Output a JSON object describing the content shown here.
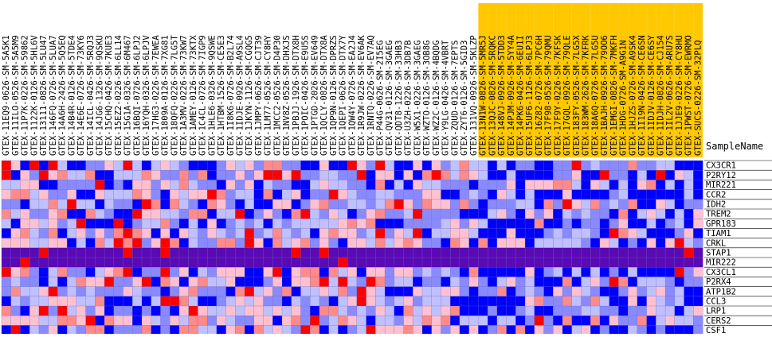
{
  "chart_data": {
    "type": "heatmap",
    "title": "",
    "xlabel": "",
    "ylabel": "",
    "row_header_label": "SampleName",
    "colors": {
      "very_low": "#0000ff",
      "low": "#8a8aff",
      "mid_low": "#c0c0ff",
      "mid_high": "#ffc0d0",
      "high": "#ff8a8a",
      "very_high": "#ff0000",
      "row_band": "#5a0ab4",
      "highlight_label": "#ffc800"
    },
    "columns": [
      "GTEX-11EQ9-0626-SM-5A5K1",
      "GTEX-11ILO-0526-SM-5A5M9",
      "GTEX-11P7K-0226-SM-59862",
      "GTEX-1122K-0126-SM-5HL6V",
      "GTEX-13111-0826-SM-5LU47",
      "GTEX-146FQ-0726-SM-5LUA7",
      "GTEX-14A6H-2426-SM-5Q5EQ",
      "GTEX-14B4R-0126-SM-5TDE4",
      "GTEX-14E6E-0726-SM-73KY6",
      "GTEX-14ICL-0426-SM-5RQJ3",
      "GTEX-14JG6-1326-SM-9QSKU",
      "GTEX-15CHQ-0426-SM-7KUE3",
      "GTEX-15EZ2-0226-SM-6LL14",
      "GTEX-15G1A-0326-SM-6M467",
      "GTEX-16BQI-0726-SM-6LPJ2",
      "GTEX-16YQH-0326-SM-6LPJV",
      "GTEX-17HG3-0226-SM-7EWEA",
      "GTEX-1809A-0126-SM-7XG81",
      "GTEX-18QFQ-0226-SM-7LG5T",
      "GTEX-1A3MV-0226-SM-73KW7",
      "GTEX-1AMEY-0126-SM-73KTX",
      "GTEX-1C4CL-0726-SM-7IGP9",
      "GTEX-1HLE6-0326-SM-9QSWE",
      "GTEX-1HTBM-1526-SM-CE5E3",
      "GTEX-1I8K6-0726-SM-B2L74",
      "GTEX-1IDJE-0926-SM-A9SL4",
      "GTEX-1JKYN-1126-SM-CGQG5",
      "GTEX-1JMPY-0626-SM-CJT39",
      "GTEX-1LM77-0526-SM-CY8HY",
      "GTEX-1MCC2-0526-SM-D4P30",
      "GTEX-1NV8Z-0526-SM-DHXJS",
      "GTEX-1PBJJ-1926-SM-DTX8H",
      "GTEX-1POIC-0426-SM-E9U5S",
      "GTEX-1PTGD-2026-SM-EV649",
      "GTEX-1QCLY-0826-SM-DTX8A",
      "GTEX-1QP9N-0126-SM-DPRZS",
      "GTEX-1QEPI-0626-SM-DTX7Y",
      "GTEX-1QW4Y-0726-SM-EA2J4",
      "GTEX-1R9JW-0226-SM-EV6AK",
      "GTEX-1RNTQ-0226-SM-EV7AQ",
      "GTEX-P44G-0626-SM-2I5EG",
      "GTEX-QV31-0126-SM-3GAEG",
      "GTEX-QDT8-1226-SM-33HB3",
      "GTEX-U3ZH-0226-SM-3DB7B",
      "GTEX-W5X1-0226-SM-3GAEG",
      "GTEX-WZTO-0126-SM-3OB8G",
      "GTEX-WZ2C-0126-SM-4BQDG",
      "GTEX-Y9LG-0426-SM-4VBRT",
      "GTEX-ZQUD-0126-SM-7EPTS",
      "GTEX-ZYT6-0126-SM-5GID3",
      "GTEX-131VQ-0926-SM-5KLZP",
      "GTEX-13N1W-0826-SM-5MR5J",
      "GTEX-13QJC-0826-SM-5RQKC",
      "GTEX-148VJ-0926-SM-5TDD3",
      "GTEX-14PJM-0926-SM-5YY4A",
      "GTEX-14PK6-0426-SM-6EU1I",
      "GTEX-15UF6-1126-SM-6LPJ3",
      "GTEX-16Z82-0726-SM-7PC6H",
      "GTEX-17F98-0526-SM-79QMU",
      "GTEX-17F9Y-0226-SM-7KFSK",
      "GTEX-17GQL-0926-SM-79QLE",
      "GTEX-183FY-0526-SM-7LG5X",
      "GTEX-183WM-2626-SM-7KFRK",
      "GTEX-18A6Q-0726-SM-7LG5U",
      "GTEX-1BAJH-0926-SM-79OO6",
      "GTEX-1EMGI-0826-SM-7MKFH",
      "GTEX-1HDG-0726-SM-A9G1N",
      "GTEX-1HJZS-0726-SM-A9SK4",
      "GTEX-1I19N-0426-SM-CE6SN",
      "GTEX-1IDJV-0126-SM-CE6SY",
      "GTEX-1IDJH-0826-SM-CJ154",
      "GTEX-1IL2V-0626-SM-ARU7S",
      "GTEX-1JJE9-0226-SM-CY8HU",
      "GTEX-1PWST-0726-SM-EWRMO",
      "GTEX-SUCS-0226-SM-32PLQ"
    ],
    "highlight_from_column": 51,
    "rows": [
      "CX3CR1",
      "P2RY12",
      "MIR221",
      "CCR2",
      "IDH2",
      "TREM2",
      "GPR183",
      "TIAM1",
      "CRKL",
      "STAP1",
      "MIR222",
      "CX3CL1",
      "P2RX4",
      "ATP1B2",
      "CCL3",
      "LRP1",
      "CERS2",
      "CSF1"
    ],
    "value_scale": [
      -3,
      -2,
      -1,
      1,
      2,
      3
    ]
  }
}
